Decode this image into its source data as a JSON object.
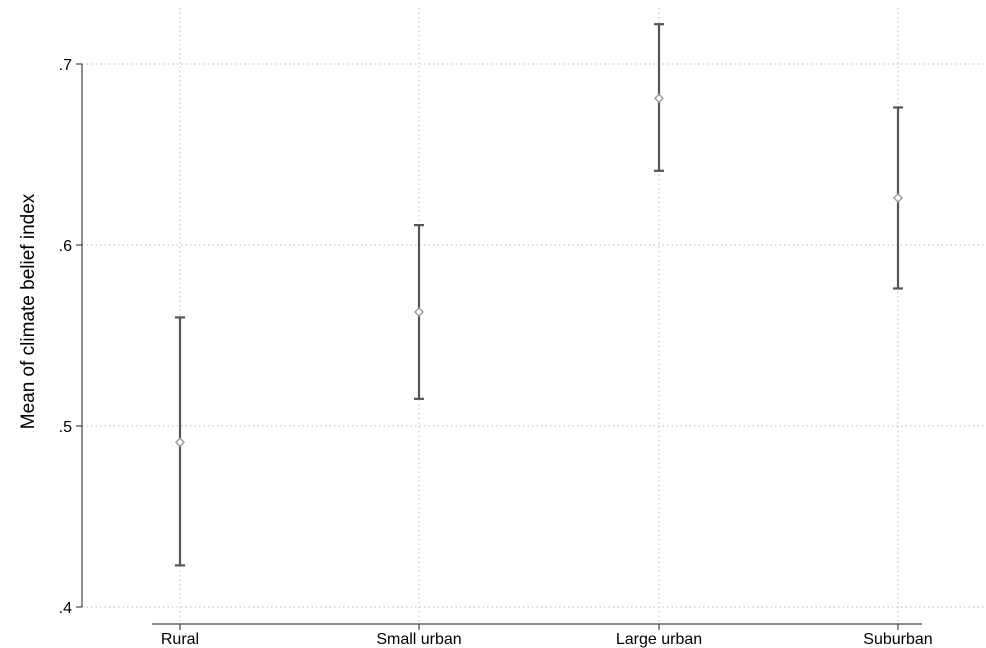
{
  "chart_data": {
    "type": "scatter",
    "subtype": "means-with-confidence-intervals",
    "title": "",
    "xlabel": "",
    "ylabel": "Mean of climate belief index",
    "categories": [
      "Rural",
      "Small urban",
      "Large urban",
      "Suburban"
    ],
    "series": [
      {
        "values": [
          0.491,
          0.563,
          0.681,
          0.626
        ],
        "ci_lower": [
          0.423,
          0.515,
          0.641,
          0.576
        ],
        "ci_upper": [
          0.56,
          0.611,
          0.722,
          0.676
        ]
      }
    ],
    "ylim": [
      0.4,
      0.7
    ],
    "yticks": [
      0.4,
      0.5,
      0.6,
      0.7
    ],
    "ytick_labels": [
      ".4",
      ".5",
      ".6",
      ".7"
    ],
    "grid": true,
    "grid_style": "dotted",
    "legend": "none",
    "colors": {
      "marker": "#999999",
      "errorbar": "#555555",
      "grid": "#c8c8c8",
      "axis": "#444444"
    }
  }
}
